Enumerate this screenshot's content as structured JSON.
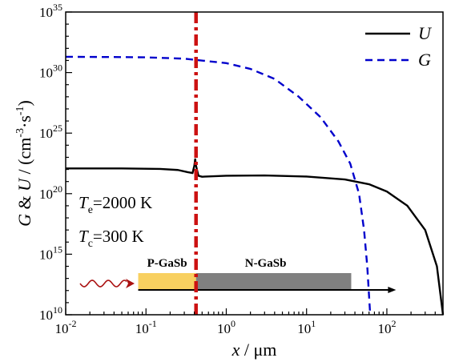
{
  "chart_data": {
    "type": "line",
    "x_scale": "log",
    "y_scale": "log",
    "xlim": [
      0.01,
      500
    ],
    "ylim": [
      10000000000.0,
      1e+35
    ],
    "xlabel": {
      "var": "x",
      "unit": " / μm"
    },
    "ylabel": {
      "var1": "G",
      "amp": " & ",
      "var2": "U",
      "unit_prefix": " / (cm",
      "exp1": "-3",
      "dot": "·s",
      "exp2": "-1",
      "close": ")"
    },
    "x_ticks": [
      {
        "value": 0.01,
        "base": "10",
        "exp": "-2"
      },
      {
        "value": 0.1,
        "base": "10",
        "exp": "-1"
      },
      {
        "value": 1,
        "base": "10",
        "exp": "0"
      },
      {
        "value": 10,
        "base": "10",
        "exp": "1"
      },
      {
        "value": 100,
        "base": "10",
        "exp": "2"
      }
    ],
    "y_ticks": [
      {
        "value": 10000000000.0,
        "base": "10",
        "exp": "10"
      },
      {
        "value": 1000000000000000.0,
        "base": "10",
        "exp": "15"
      },
      {
        "value": 1e+20,
        "base": "10",
        "exp": "20"
      },
      {
        "value": 1e+25,
        "base": "10",
        "exp": "25"
      },
      {
        "value": 1e+30,
        "base": "10",
        "exp": "30"
      },
      {
        "value": 1e+35,
        "base": "10",
        "exp": "35"
      }
    ],
    "series": [
      {
        "name": "U",
        "style": "solid",
        "color": "#000000",
        "points": [
          [
            0.01,
            1.2e+22
          ],
          [
            0.05,
            1.2e+22
          ],
          [
            0.15,
            1.1e+22
          ],
          [
            0.25,
            9e+21
          ],
          [
            0.33,
            6e+21
          ],
          [
            0.38,
            5e+21
          ],
          [
            0.4,
            2e+22
          ],
          [
            0.41,
            7e+22
          ],
          [
            0.42,
            2e+22
          ],
          [
            0.45,
            3e+21
          ],
          [
            0.5,
            2.5e+21
          ],
          [
            1,
            3e+21
          ],
          [
            3,
            3.2e+21
          ],
          [
            10,
            2.6e+21
          ],
          [
            30,
            1.5e+21
          ],
          [
            60,
            6e+20
          ],
          [
            100,
            1.5e+20
          ],
          [
            180,
            1e+19
          ],
          [
            300,
            1e+17
          ],
          [
            420,
            100000000000000.0
          ],
          [
            500,
            10000000000.0
          ]
        ]
      },
      {
        "name": "G",
        "style": "dashed",
        "color": "#0000cc",
        "points": [
          [
            0.01,
            2e+31
          ],
          [
            0.05,
            1.9e+31
          ],
          [
            0.1,
            1.8e+31
          ],
          [
            0.3,
            1.4e+31
          ],
          [
            1,
            6e+30
          ],
          [
            2,
            2e+30
          ],
          [
            4,
            3e+29
          ],
          [
            8,
            1e+28
          ],
          [
            15,
            2e+26
          ],
          [
            25,
            2e+24
          ],
          [
            35,
            3e+22
          ],
          [
            45,
            1e+20
          ],
          [
            52,
            1e+17
          ],
          [
            57,
            100000000000000.0
          ],
          [
            62,
            10000000000.0
          ]
        ]
      }
    ],
    "marker_line": {
      "x": 0.42,
      "color": "#cc1111",
      "style": "dash-dot"
    },
    "legend": {
      "position": "top-right"
    },
    "annotations": {
      "te": {
        "var": "T",
        "sub": "e",
        "value": "=2000 K"
      },
      "tc": {
        "var": "T",
        "sub": "c",
        "value": "=300 K"
      }
    },
    "regions": [
      {
        "label": "P-GaSb",
        "x_start": 0.08,
        "x_end": 0.42,
        "color": "#f8d060"
      },
      {
        "label": "N-GaSb",
        "x_start": 0.42,
        "x_end": 36,
        "color": "#808080"
      }
    ],
    "arrow_end_x": 130,
    "wave_color": "#aa1111"
  }
}
